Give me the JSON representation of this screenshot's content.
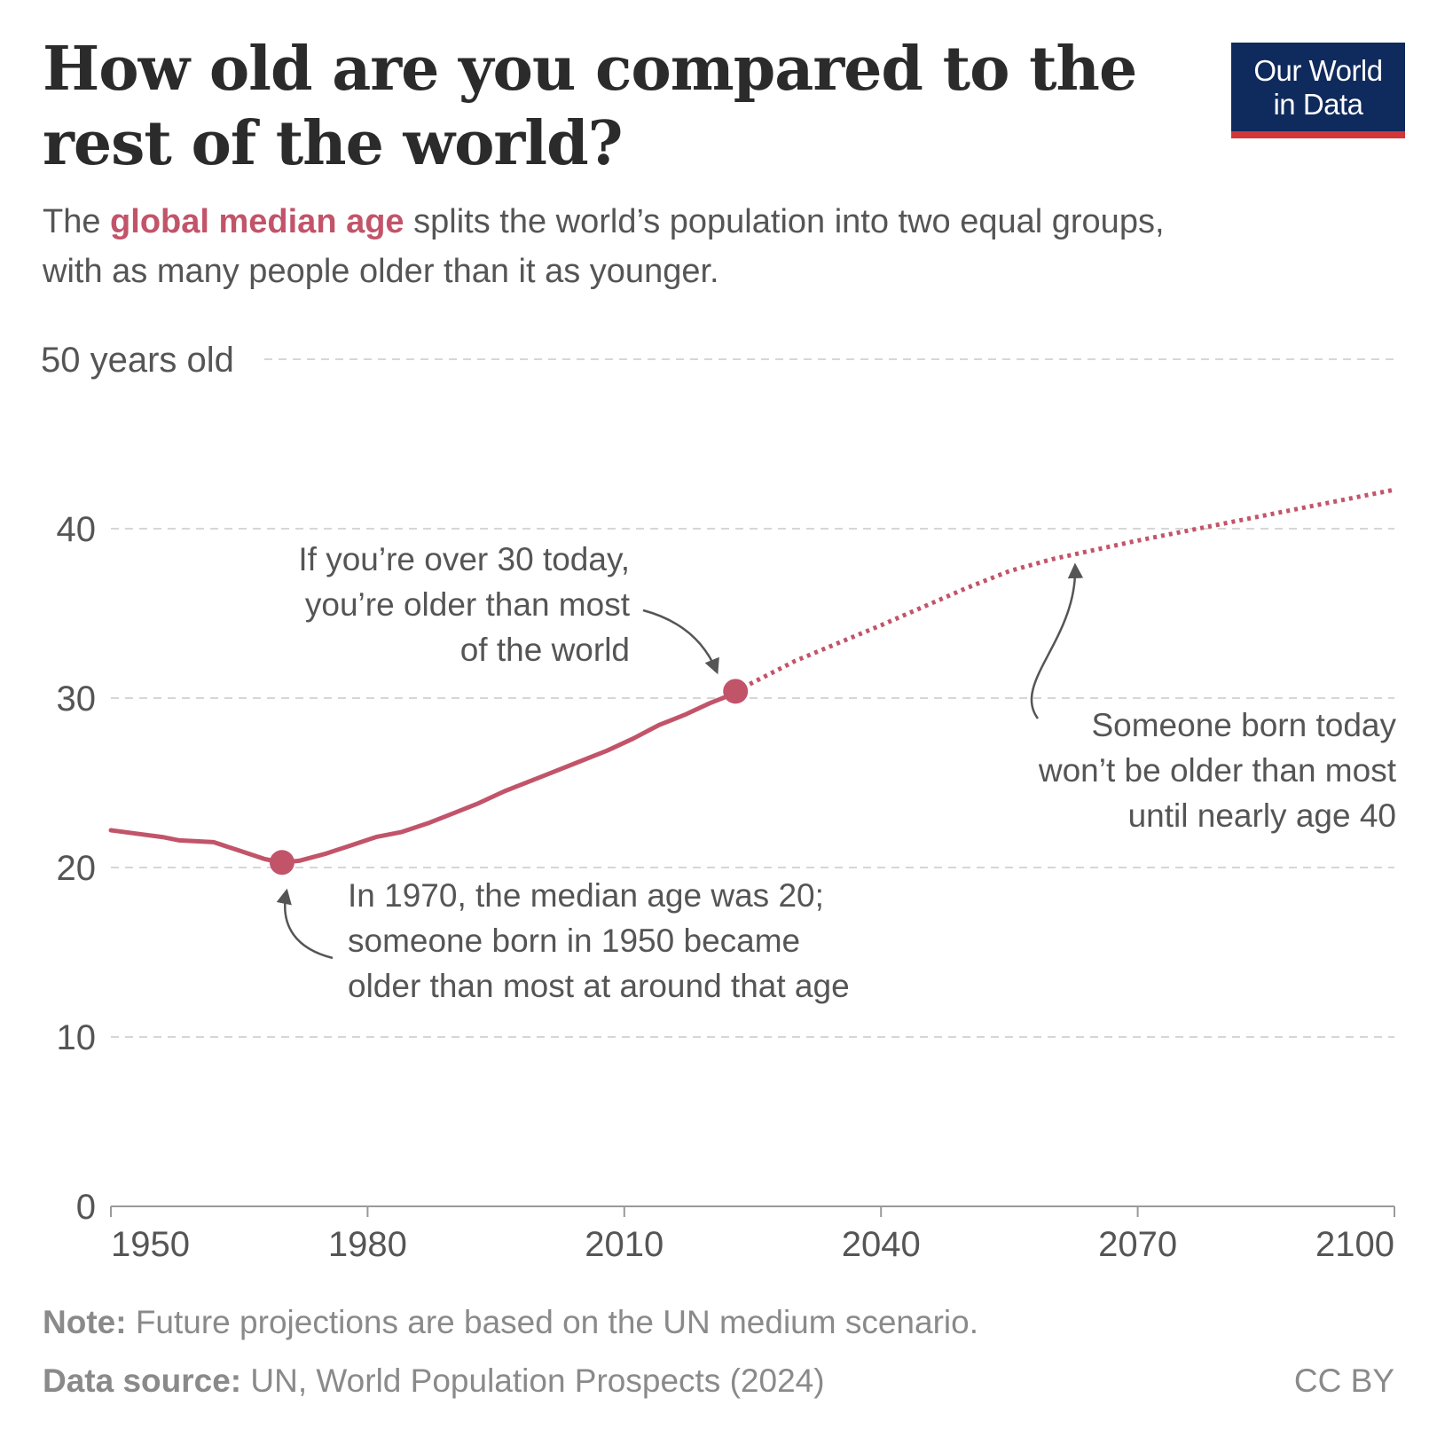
{
  "header": {
    "title": "How old are you compared to the rest of the world?",
    "subtitle_before": "The ",
    "subtitle_highlight": "global median age",
    "subtitle_after": " splits the world’s population into two equal groups, with as many people older than it as younger.",
    "logo_line1": "Our World",
    "logo_line2": "in Data"
  },
  "colors": {
    "series": "#c2546a",
    "logo_bg": "#0f2a5c",
    "logo_accent": "#d13639",
    "text": "#555555"
  },
  "chart_data": {
    "type": "line",
    "y_axis_label": "50 years old",
    "ylim": [
      0,
      50
    ],
    "xlim": [
      1950,
      2100
    ],
    "y_ticks": [
      0,
      10,
      20,
      30,
      40
    ],
    "x_ticks": [
      1950,
      1980,
      2010,
      2040,
      2070,
      2100
    ],
    "grid": true,
    "series": [
      {
        "style": "solid",
        "points": [
          [
            1950,
            22.2
          ],
          [
            1953,
            22.0
          ],
          [
            1956,
            21.8
          ],
          [
            1958,
            21.6
          ],
          [
            1962,
            21.5
          ],
          [
            1965,
            21.0
          ],
          [
            1968,
            20.5
          ],
          [
            1970,
            20.3
          ],
          [
            1972,
            20.4
          ],
          [
            1975,
            20.8
          ],
          [
            1978,
            21.3
          ],
          [
            1981,
            21.8
          ],
          [
            1984,
            22.1
          ],
          [
            1987,
            22.6
          ],
          [
            1990,
            23.2
          ],
          [
            1993,
            23.8
          ],
          [
            1996,
            24.5
          ],
          [
            2000,
            25.3
          ],
          [
            2004,
            26.1
          ],
          [
            2008,
            26.9
          ],
          [
            2011,
            27.6
          ],
          [
            2014,
            28.4
          ],
          [
            2017,
            29.0
          ],
          [
            2020,
            29.7
          ],
          [
            2022,
            30.1
          ],
          [
            2023,
            30.4
          ]
        ]
      },
      {
        "style": "dotted",
        "points": [
          [
            2023,
            30.4
          ],
          [
            2030,
            32.2
          ],
          [
            2040,
            34.3
          ],
          [
            2050,
            36.5
          ],
          [
            2055,
            37.5
          ],
          [
            2060,
            38.2
          ],
          [
            2070,
            39.3
          ],
          [
            2080,
            40.3
          ],
          [
            2090,
            41.3
          ],
          [
            2100,
            42.3
          ]
        ]
      }
    ],
    "highlighted_points": [
      [
        1970,
        20.3
      ],
      [
        2023,
        30.4
      ]
    ],
    "annotations": [
      {
        "lines": [
          "If you’re over 30 today,",
          "you’re older than most",
          "of the world"
        ],
        "align": "right"
      },
      {
        "lines": [
          "Someone born today",
          "won’t be older than most",
          "until nearly age 40"
        ],
        "align": "right"
      },
      {
        "lines": [
          "In 1970, the median age was 20;",
          "someone born in 1950 became",
          "older than most at around that age"
        ],
        "align": "left"
      }
    ]
  },
  "footer": {
    "note_label": "Note:",
    "note_text": " Future projections are based on the UN medium scenario.",
    "source_label": "Data source:",
    "source_text": " UN, World Population Prospects (2024)",
    "license": "CC BY"
  }
}
